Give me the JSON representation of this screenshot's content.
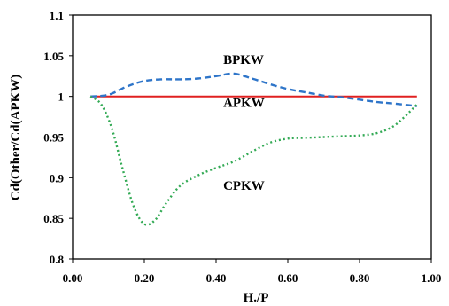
{
  "chart_data": {
    "type": "line",
    "title": "",
    "xlabel": "H./P",
    "ylabel": "Cd(Other/Cd(APKW)",
    "xlim": [
      0.0,
      1.0
    ],
    "ylim": [
      0.8,
      1.1
    ],
    "xticks": [
      "0.00",
      "0.20",
      "0.40",
      "0.60",
      "0.80",
      "1.00"
    ],
    "yticks": [
      "0.8",
      "0.85",
      "0.9",
      "0.95",
      "1",
      "1.05",
      "1.1"
    ],
    "grid": false,
    "legend": "none",
    "series": [
      {
        "name": "APKW",
        "color": "#e02020",
        "style": "solid",
        "x": [
          0.05,
          0.96
        ],
        "values": [
          1.0,
          1.0
        ]
      },
      {
        "name": "BPKW",
        "color": "#2e75c9",
        "style": "dashed",
        "x": [
          0.05,
          0.1,
          0.15,
          0.2,
          0.25,
          0.3,
          0.35,
          0.4,
          0.45,
          0.5,
          0.55,
          0.6,
          0.65,
          0.7,
          0.75,
          0.8,
          0.85,
          0.9,
          0.96
        ],
        "values": [
          1.0,
          1.002,
          1.012,
          1.019,
          1.021,
          1.021,
          1.022,
          1.025,
          1.028,
          1.022,
          1.015,
          1.009,
          1.005,
          1.001,
          0.999,
          0.996,
          0.993,
          0.991,
          0.988
        ]
      },
      {
        "name": "CPKW",
        "color": "#33aa55",
        "style": "dotted",
        "x": [
          0.05,
          0.08,
          0.11,
          0.14,
          0.17,
          0.2,
          0.23,
          0.26,
          0.3,
          0.35,
          0.4,
          0.45,
          0.5,
          0.55,
          0.6,
          0.65,
          0.7,
          0.75,
          0.8,
          0.85,
          0.9,
          0.96
        ],
        "values": [
          1.0,
          0.99,
          0.96,
          0.91,
          0.865,
          0.843,
          0.848,
          0.868,
          0.89,
          0.903,
          0.912,
          0.92,
          0.932,
          0.943,
          0.948,
          0.949,
          0.95,
          0.951,
          0.952,
          0.955,
          0.965,
          0.99
        ]
      }
    ],
    "annotations": [
      {
        "text": "BPKW",
        "x": 0.42,
        "y": 1.04
      },
      {
        "text": "APKW",
        "x": 0.42,
        "y": 0.987
      },
      {
        "text": "CPKW",
        "x": 0.42,
        "y": 0.885
      }
    ]
  }
}
